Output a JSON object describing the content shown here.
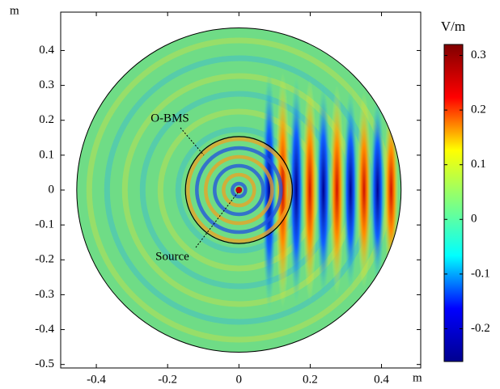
{
  "chart_data": {
    "type": "field",
    "x_unit": "m",
    "y_unit": "m",
    "xlim": [
      -0.5,
      0.51
    ],
    "ylim": [
      -0.51,
      0.51
    ],
    "xticks": [
      -0.4,
      -0.2,
      0,
      0.2,
      0.4
    ],
    "yticks": [
      -0.5,
      -0.4,
      -0.3,
      -0.2,
      -0.1,
      0,
      0.1,
      0.2,
      0.3,
      0.4
    ],
    "colorbar": {
      "label": "V/m",
      "clim": [
        -0.26,
        0.32
      ],
      "ticks": [
        -0.2,
        -0.1,
        0,
        0.1,
        0.2,
        0.3
      ],
      "colormap": "jet"
    },
    "annotations": [
      "O-BMS",
      "Source"
    ]
  }
}
